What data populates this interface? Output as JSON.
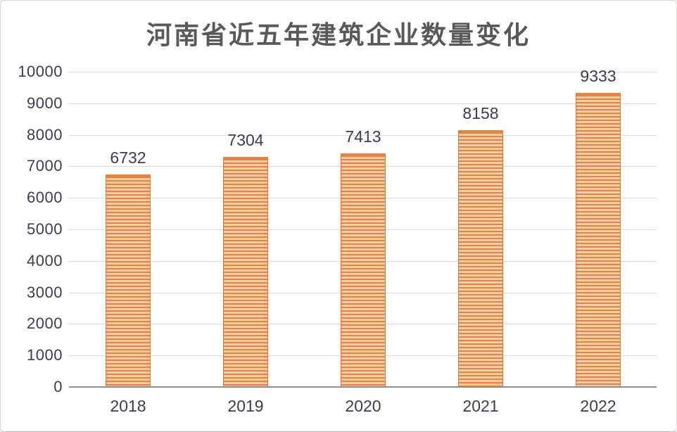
{
  "chart_data": {
    "type": "bar",
    "title": "河南省近五年建筑企业数量变化",
    "categories": [
      "2018",
      "2019",
      "2020",
      "2021",
      "2022"
    ],
    "values": [
      6732,
      7304,
      7413,
      8158,
      9333
    ],
    "data_labels": [
      "6732",
      "7304",
      "7413",
      "8158",
      "9333"
    ],
    "xlabel": "",
    "ylabel": "",
    "ylim": [
      0,
      10000
    ],
    "ytick_interval": 1000,
    "yticks": [
      "0",
      "1000",
      "2000",
      "3000",
      "4000",
      "5000",
      "6000",
      "7000",
      "8000",
      "9000",
      "10000"
    ],
    "grid": true,
    "legend": false,
    "bar_style": {
      "pattern": "horizontal-stripes",
      "stripe_dark": "#e08547",
      "stripe_light": "#f6cba2",
      "border": "#dd7c39"
    },
    "colors": {
      "title_text": "#58595b",
      "axis_text": "#3b3d50",
      "gridline": "#dcdce2",
      "axis_line": "#8f8f93",
      "background": "#ffffff"
    }
  }
}
